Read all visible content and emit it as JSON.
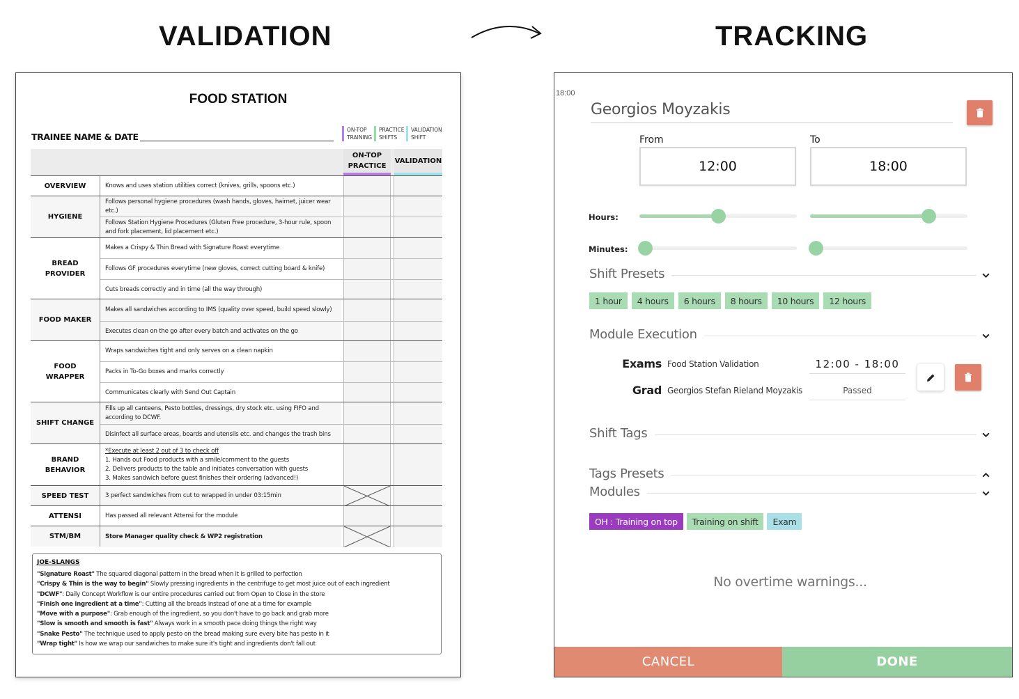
{
  "titles": {
    "left": "VALIDATION",
    "right": "TRACKING"
  },
  "sheet": {
    "title": "FOOD STATION",
    "trainee_label": "TRAINEE NAME & DATE",
    "legend": [
      {
        "line1": "ON-TOP",
        "line2": "TRAINING",
        "color": "#b57ee0"
      },
      {
        "line1": "PRACTICE",
        "line2": "SHIFTS",
        "color": "#8fe0a3"
      },
      {
        "line1": "VALIDATION",
        "line2": "SHIFT",
        "color": "#9fe2ec"
      }
    ],
    "col_headers": {
      "on_top_practice": "ON-TOP\nPRACTICE",
      "validation": "VALIDATION"
    },
    "groups": [
      {
        "label": "OVERVIEW",
        "items": [
          "Knows and uses station utilities correct (knives, grills, spoons etc.)"
        ]
      },
      {
        "label": "HYGIENE",
        "items": [
          "Follows personal hygiene procedures (wash hands, gloves, hairnet, juicer wear etc.)",
          "Follows Station Hygiene Procedures (Gluten Free procedure, 3-hour rule, spoon and fork placement, lid placement etc.)"
        ]
      },
      {
        "label": "BREAD PROVIDER",
        "items": [
          "Makes a Crispy & Thin Bread with Signature Roast everytime",
          "Follows GF procedures everytime (new gloves, correct cutting board & knife)",
          "Cuts breads correctly and in time (all the way through)"
        ]
      },
      {
        "label": "FOOD MAKER",
        "items": [
          "Makes all sandwiches according to IMS (quality over speed, build speed slowly)",
          "Executes clean on the go after every batch and activates on the go"
        ]
      },
      {
        "label": "FOOD WRAPPER",
        "items": [
          "Wraps sandwiches tight and only serves on a clean napkin",
          "Packs in To-Go boxes and marks correctly",
          "Communicates clearly with Send Out Captain"
        ]
      },
      {
        "label": "SHIFT CHANGE",
        "items": [
          "Fills up all canteens, Pesto bottles, dressings, dry stock etc. using FIFO and according to DCWF.",
          "Disinfect all surface areas, boards and utensils etc. and changes the trash bins"
        ]
      },
      {
        "label": "BRAND BEHAVIOR",
        "items": [
          "*Execute at least 2 out of 3 to check off",
          "1. Hands out Food products with a smile/comment to the guests",
          "2. Delivers products to the table and initiates conversation with guests",
          "3. Makes sandwich before guest finishes their ordering (advanced!)"
        ]
      },
      {
        "label": "SPEED TEST",
        "items": [
          "3 perfect sandwiches from cut to wrapped in under 03:15min"
        ]
      },
      {
        "label": "ATTENSI",
        "items": [
          "Has passed all relevant Attensi for the module"
        ]
      },
      {
        "label": "STM/BM",
        "items": [
          "Store Manager quality check & WP2 registration"
        ]
      }
    ],
    "slangs": {
      "heading": "JOE-SLANGS",
      "lines": [
        {
          "term": "\"Signature Roast\"",
          "text": " The squared diagonal pattern in the bread when it is grilled to perfection"
        },
        {
          "term": "\"Crispy & Thin is the way to begin\"",
          "text": " Slowly pressing ingredients in the centrifuge to get most juice out of each ingredient"
        },
        {
          "term": "\"DCWF\"",
          "text": ": Daily Concept Workflow is our entire procedures carried out from Open to Close in the store"
        },
        {
          "term": "\"Finish one ingredient at a time\"",
          "text": ": Cutting all the breads instead of one at a time for example"
        },
        {
          "term": "\"Move with a purpose\"",
          "text": ": Grab enough of the ingredient, so you don't have to go back and grab more"
        },
        {
          "term": "\"Slow is smooth and smooth is fast\"",
          "text": " Always work in a smooth pace doing things the right way"
        },
        {
          "term": "\"Snake Pesto\"",
          "text": " The technique used to apply pesto on the bread making sure every bite has pesto in it"
        },
        {
          "term": "\"Wrap tight\"",
          "text": " Is how we wrap our sandwiches to make sure it's tight and ingredients don't fall out"
        }
      ]
    }
  },
  "tracking": {
    "cut_time": "18:00",
    "employee_name": "Georgios Moyzakis",
    "from_label": "From",
    "to_label": "To",
    "from_time": "12:00",
    "to_time": "18:00",
    "hours_label": "Hours:",
    "minutes_label": "Minutes:",
    "sliders": {
      "from_hours": 0.5,
      "to_hours": 0.75,
      "from_minutes": 0,
      "to_minutes": 0
    },
    "shift_presets_title": "Shift Presets",
    "presets": [
      "1 hour",
      "4 hours",
      "6 hours",
      "8 hours",
      "10 hours",
      "12 hours"
    ],
    "module_execution_title": "Module Execution",
    "module": {
      "exams_label": "Exams",
      "exams_value": "Food Station Validation",
      "time": "12:00 - 18:00",
      "grad_label": "Grad",
      "grad_value": "Georgios Stefan Rieland Moyzakis",
      "status": "Passed"
    },
    "shift_tags_title": "Shift Tags",
    "tags_presets_title": "Tags Presets",
    "modules_title": "Modules",
    "tags": [
      {
        "label": "OH : Training on top",
        "style": "purple"
      },
      {
        "label": "Training on shift",
        "style": "green"
      },
      {
        "label": "Exam",
        "style": "cyan"
      }
    ],
    "warning": "No overtime warnings...",
    "cancel_label": "CANCEL",
    "done_label": "DONE"
  },
  "colors": {
    "delete": "#e0806b",
    "green": "#96d0a0",
    "purple": "#9b3bbf",
    "cyan": "#a9dfe6"
  }
}
